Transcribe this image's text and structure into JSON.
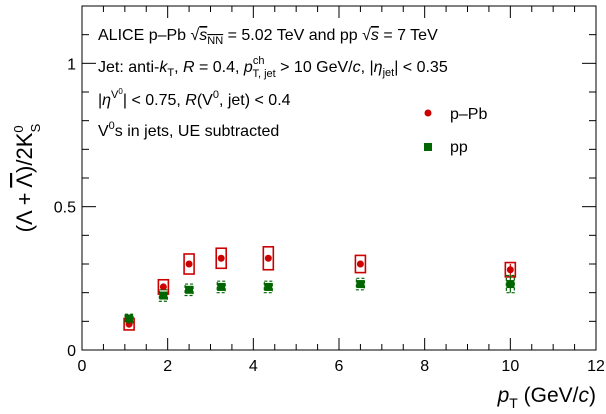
{
  "chart_data": {
    "type": "scatter",
    "title": "",
    "xlabel": "pT (GeV/c)",
    "ylabel": "(Λ + Λ̄)/2K0S",
    "xlim": [
      0,
      12
    ],
    "ylim": [
      0,
      1.2
    ],
    "x_ticks": [
      0,
      2,
      4,
      6,
      8,
      10,
      12
    ],
    "y_ticks": [
      0,
      0.5,
      1
    ],
    "grid": false,
    "annotations": [
      "ALICE p–Pb √sNN = 5.02 TeV and pp √s = 7 TeV",
      "Jet: anti-kT, R = 0.4, pT,jet ch > 10 GeV/c, |ηjet| < 0.35",
      "|ηV0| < 0.75, R(V0, jet) < 0.4",
      "V0s in jets, UE subtracted"
    ],
    "legend": {
      "placement": "top-right"
    },
    "series": [
      {
        "name": "p–Pb",
        "color": "#cc0000",
        "marker": "circle",
        "x": [
          1.1,
          1.9,
          2.5,
          3.25,
          4.35,
          6.5,
          10.0
        ],
        "y": [
          0.09,
          0.22,
          0.3,
          0.32,
          0.32,
          0.3,
          0.28
        ],
        "syst": [
          0.02,
          0.025,
          0.035,
          0.035,
          0.04,
          0.03,
          0.025
        ],
        "stat": [
          0.01,
          0.01,
          0.01,
          0.01,
          0.01,
          0.01,
          0.02
        ]
      },
      {
        "name": "pp",
        "color": "#006600",
        "marker": "square",
        "x": [
          1.1,
          1.9,
          2.5,
          3.25,
          4.35,
          6.5,
          10.0
        ],
        "y": [
          0.11,
          0.19,
          0.21,
          0.22,
          0.22,
          0.23,
          0.23
        ],
        "syst": [
          0.015,
          0.02,
          0.02,
          0.02,
          0.02,
          0.02,
          0.03
        ],
        "stat": [
          0.01,
          0.01,
          0.01,
          0.01,
          0.01,
          0.01,
          0.03
        ]
      }
    ]
  }
}
